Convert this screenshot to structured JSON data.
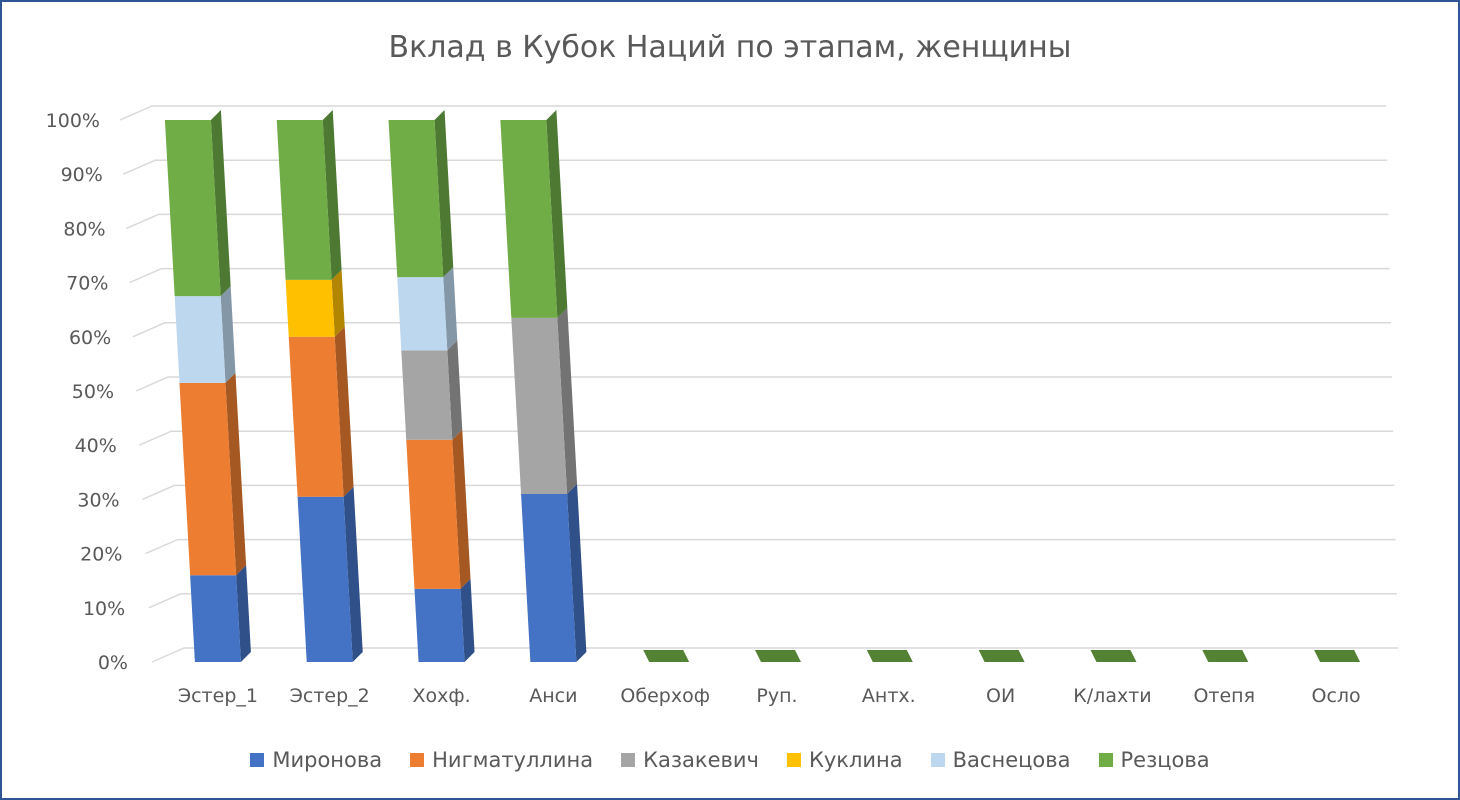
{
  "chart_data": {
    "type": "bar",
    "stacked": "percent",
    "title": "Вклад в Кубок Наций по этапам, женщины",
    "categories": [
      "Эстер_1",
      "Эстер_2",
      "Хохф.",
      "Анси",
      "Оберхоф",
      "Руп.",
      "Антх.",
      "ОИ",
      "К/лахти",
      "Отепя",
      "Осло"
    ],
    "y_ticks": [
      "0%",
      "10%",
      "20%",
      "30%",
      "40%",
      "50%",
      "60%",
      "70%",
      "80%",
      "90%",
      "100%"
    ],
    "ylim": [
      0,
      100
    ],
    "grid": true,
    "legend_position": "bottom",
    "series": [
      {
        "name": "Миронова",
        "color": "#4472c4",
        "values": [
          16,
          30.5,
          13.5,
          31,
          0,
          0,
          0,
          0,
          0,
          0,
          0
        ]
      },
      {
        "name": "Нигматуллина",
        "color": "#ed7d31",
        "values": [
          35.5,
          29.5,
          27.5,
          0,
          0,
          0,
          0,
          0,
          0,
          0,
          0
        ]
      },
      {
        "name": "Казакевич",
        "color": "#a5a5a5",
        "values": [
          0,
          0,
          16.5,
          32.5,
          0,
          0,
          0,
          0,
          0,
          0,
          0
        ]
      },
      {
        "name": "Куклина",
        "color": "#ffc000",
        "values": [
          0,
          10.5,
          0,
          0,
          0,
          0,
          0,
          0,
          0,
          0,
          0
        ]
      },
      {
        "name": "Васнецова",
        "color": "#bdd7ee",
        "values": [
          16,
          0,
          13.5,
          0,
          0,
          0,
          0,
          0,
          0,
          0,
          0
        ]
      },
      {
        "name": "Резцова",
        "color": "#70ad47",
        "values": [
          32.5,
          29.5,
          29,
          36.5,
          0,
          0,
          0,
          0,
          0,
          0,
          0
        ]
      }
    ]
  }
}
